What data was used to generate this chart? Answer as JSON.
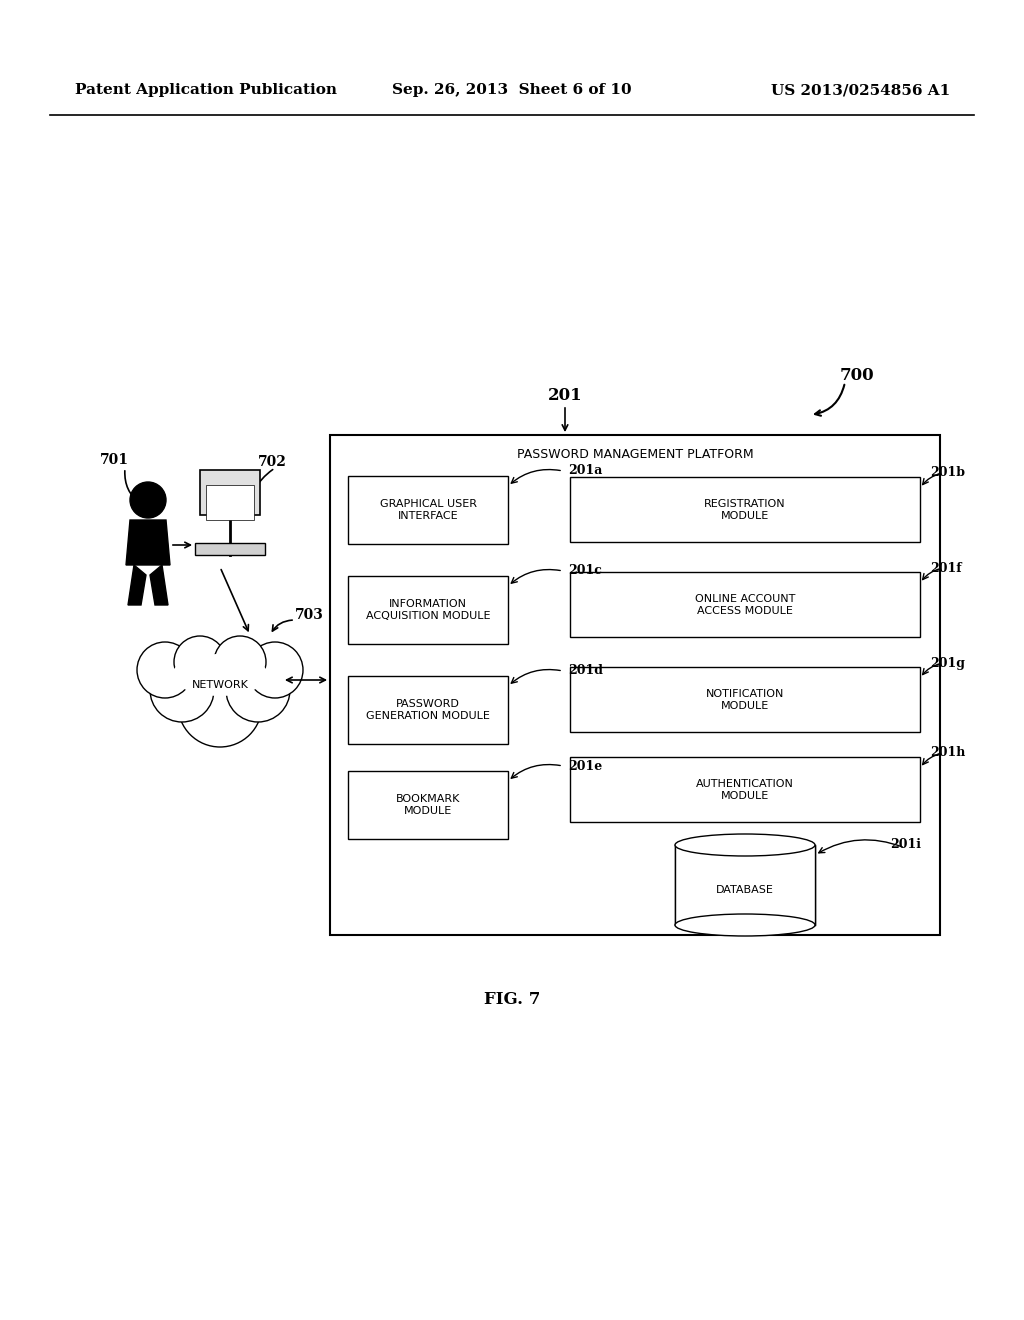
{
  "title_left": "Patent Application Publication",
  "title_center": "Sep. 26, 2013  Sheet 6 of 10",
  "title_right": "US 2013/0254856 A1",
  "fig_label": "FIG. 7",
  "platform_label": "PASSWORD MANAGEMENT PLATFORM",
  "platform_ref": "201",
  "figure_ref": "700",
  "left_modules": [
    {
      "label": "GRAPHICAL USER\nINTERFACE",
      "ref": "201a"
    },
    {
      "label": "INFORMATION\nACQUISITION MODULE",
      "ref": "201c"
    },
    {
      "label": "PASSWORD\nGENERATION MODULE",
      "ref": "201d"
    },
    {
      "label": "BOOKMARK\nMODULE",
      "ref": "201e"
    }
  ],
  "right_modules": [
    {
      "label": "REGISTRATION\nMODULE",
      "ref": "201b"
    },
    {
      "label": "ONLINE ACCOUNT\nACCESS MODULE",
      "ref": "201f"
    },
    {
      "label": "NOTIFICATION\nMODULE",
      "ref": "201g"
    },
    {
      "label": "AUTHENTICATION\nMODULE",
      "ref": "201h"
    }
  ],
  "network_label": "NETWORK",
  "network_ref": "703",
  "person_ref": "701",
  "computer_ref": "702",
  "database_ref": "201i",
  "database_label": "DATABASE",
  "bg_color": "#ffffff",
  "text_color": "#000000"
}
